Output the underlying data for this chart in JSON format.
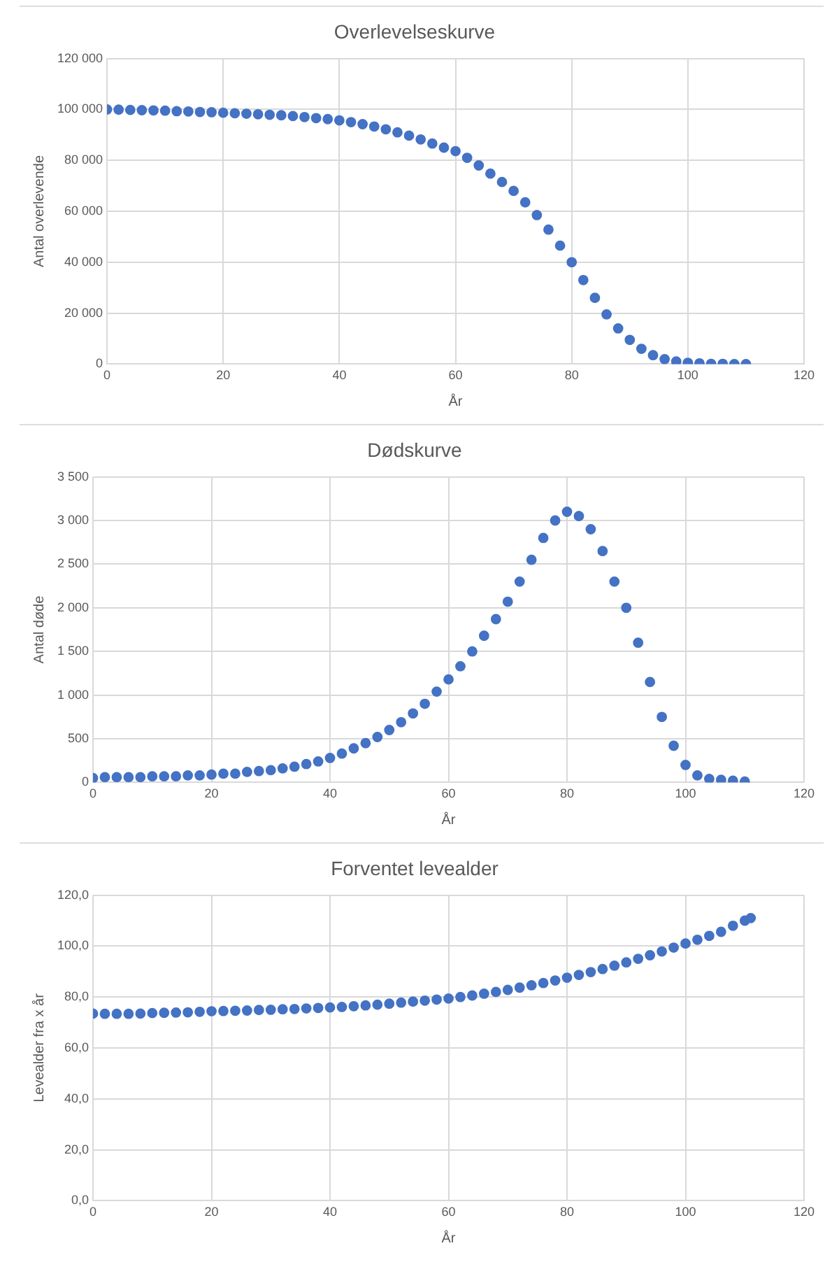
{
  "chart_data": [
    {
      "type": "scatter",
      "title": "Overlevelseskurve",
      "xlabel": "År",
      "ylabel": "Antal overlevende",
      "marker": "circle",
      "grid": true,
      "legend": false,
      "xlim": [
        0,
        120
      ],
      "xticks": [
        0,
        20,
        40,
        60,
        80,
        100,
        120
      ],
      "ylim": [
        0,
        120000
      ],
      "yticks": [
        {
          "value": 0,
          "label": "0"
        },
        {
          "value": 20000,
          "label": "20 000"
        },
        {
          "value": 40000,
          "label": "40 000"
        },
        {
          "value": 60000,
          "label": "60 000"
        },
        {
          "value": 80000,
          "label": "80 000"
        },
        {
          "value": 100000,
          "label": "100 000"
        },
        {
          "value": 120000,
          "label": "120 000"
        }
      ],
      "x": [
        0,
        2,
        4,
        6,
        8,
        10,
        12,
        14,
        16,
        18,
        20,
        22,
        24,
        26,
        28,
        30,
        32,
        34,
        36,
        38,
        40,
        42,
        44,
        46,
        48,
        50,
        52,
        54,
        56,
        58,
        60,
        62,
        64,
        66,
        68,
        70,
        72,
        74,
        76,
        78,
        80,
        82,
        84,
        86,
        88,
        90,
        92,
        94,
        96,
        98,
        100,
        102,
        104,
        106,
        108,
        110
      ],
      "series": [
        {
          "color": "#4472c4",
          "values": [
            100000,
            99900,
            99800,
            99700,
            99600,
            99500,
            99300,
            99200,
            99000,
            98900,
            98700,
            98500,
            98300,
            98100,
            97900,
            97700,
            97400,
            97000,
            96600,
            96200,
            95700,
            95000,
            94200,
            93300,
            92200,
            91000,
            89700,
            88200,
            86600,
            85000,
            83600,
            81000,
            78000,
            74800,
            71500,
            68000,
            63500,
            58500,
            52800,
            46500,
            40000,
            33000,
            26000,
            19500,
            14000,
            9500,
            6000,
            3500,
            1900,
            1000,
            500,
            300,
            100,
            100,
            0,
            0
          ]
        }
      ]
    },
    {
      "type": "scatter",
      "title": "Dødskurve",
      "xlabel": "År",
      "ylabel": "Antal døde",
      "marker": "circle",
      "grid": true,
      "legend": false,
      "xlim": [
        0,
        120
      ],
      "xticks": [
        0,
        20,
        40,
        60,
        80,
        100,
        120
      ],
      "ylim": [
        0,
        3500
      ],
      "yticks": [
        {
          "value": 0,
          "label": "0"
        },
        {
          "value": 500,
          "label": "500"
        },
        {
          "value": 1000,
          "label": "1 000"
        },
        {
          "value": 1500,
          "label": "1 500"
        },
        {
          "value": 2000,
          "label": "2 000"
        },
        {
          "value": 2500,
          "label": "2 500"
        },
        {
          "value": 3000,
          "label": "3 000"
        },
        {
          "value": 3500,
          "label": "3 500"
        }
      ],
      "x": [
        0,
        2,
        4,
        6,
        8,
        10,
        12,
        14,
        16,
        18,
        20,
        22,
        24,
        26,
        28,
        30,
        32,
        34,
        36,
        38,
        40,
        42,
        44,
        46,
        48,
        50,
        52,
        54,
        56,
        58,
        60,
        62,
        64,
        66,
        68,
        70,
        72,
        74,
        76,
        78,
        80,
        82,
        84,
        86,
        88,
        90,
        92,
        94,
        96,
        98,
        100,
        102,
        104,
        106,
        108,
        110
      ],
      "series": [
        {
          "color": "#4472c4",
          "values": [
            50,
            60,
            60,
            60,
            60,
            70,
            70,
            70,
            80,
            80,
            90,
            100,
            100,
            120,
            130,
            140,
            160,
            180,
            210,
            240,
            280,
            330,
            390,
            450,
            520,
            600,
            690,
            790,
            900,
            1040,
            1180,
            1330,
            1500,
            1680,
            1870,
            2070,
            2300,
            2550,
            2800,
            3000,
            3100,
            3050,
            2900,
            2650,
            2300,
            2000,
            1600,
            1150,
            750,
            420,
            200,
            80,
            40,
            30,
            20,
            10
          ]
        }
      ]
    },
    {
      "type": "scatter",
      "title": "Forventet levealder",
      "xlabel": "År",
      "ylabel": "Levealder fra x år",
      "marker": "circle",
      "grid": true,
      "legend": false,
      "xlim": [
        0,
        120
      ],
      "xticks": [
        0,
        20,
        40,
        60,
        80,
        100,
        120
      ],
      "ylim": [
        0,
        120
      ],
      "yticks": [
        {
          "value": 0,
          "label": "0,0"
        },
        {
          "value": 20,
          "label": "20,0"
        },
        {
          "value": 40,
          "label": "40,0"
        },
        {
          "value": 60,
          "label": "60,0"
        },
        {
          "value": 80,
          "label": "80,0"
        },
        {
          "value": 100,
          "label": "100,0"
        },
        {
          "value": 120,
          "label": "120,0"
        }
      ],
      "x": [
        0,
        2,
        4,
        6,
        8,
        10,
        12,
        14,
        16,
        18,
        20,
        22,
        24,
        26,
        28,
        30,
        32,
        34,
        36,
        38,
        40,
        42,
        44,
        46,
        48,
        50,
        52,
        54,
        56,
        58,
        60,
        62,
        64,
        66,
        68,
        70,
        72,
        74,
        76,
        78,
        80,
        82,
        84,
        86,
        88,
        90,
        92,
        94,
        96,
        98,
        100,
        102,
        104,
        106,
        108,
        110,
        111
      ],
      "series": [
        {
          "color": "#4472c4",
          "values": [
            73.5,
            73.4,
            73.4,
            73.4,
            73.5,
            73.7,
            73.8,
            73.9,
            74.0,
            74.2,
            74.4,
            74.5,
            74.6,
            74.7,
            74.9,
            75.0,
            75.2,
            75.3,
            75.5,
            75.7,
            75.9,
            76.1,
            76.4,
            76.7,
            77.0,
            77.4,
            77.8,
            78.2,
            78.6,
            79.0,
            79.4,
            80.0,
            80.6,
            81.3,
            82.0,
            82.8,
            83.7,
            84.6,
            85.5,
            86.5,
            87.6,
            88.7,
            89.8,
            91.0,
            92.3,
            93.6,
            95.0,
            96.4,
            97.9,
            99.4,
            101.0,
            102.5,
            104.0,
            105.6,
            108.0,
            110.0,
            111.0
          ]
        }
      ]
    }
  ]
}
